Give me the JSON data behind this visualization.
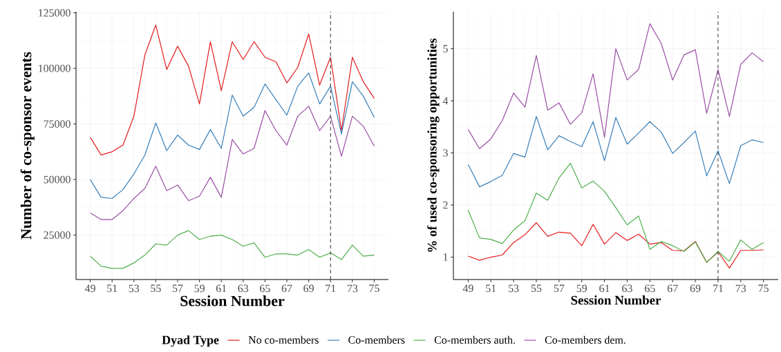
{
  "chart_data": [
    {
      "type": "line",
      "xlabel": "Session Number",
      "ylabel": "Number of co-sponsor events",
      "legend_title": "Dyad Type",
      "legend": "bottom",
      "grid": true,
      "x": [
        49,
        50,
        51,
        52,
        53,
        54,
        55,
        56,
        57,
        58,
        59,
        60,
        61,
        62,
        63,
        64,
        65,
        66,
        67,
        68,
        69,
        70,
        71,
        72,
        73,
        74,
        75
      ],
      "xlim": [
        47.7,
        76.3
      ],
      "xticks": [
        49,
        51,
        53,
        55,
        57,
        59,
        61,
        63,
        65,
        67,
        69,
        71,
        73,
        75
      ],
      "ylim": [
        5000,
        125500
      ],
      "yticks": [
        25000,
        50000,
        75000,
        100000,
        125000
      ],
      "ref_lines": [
        {
          "axis": "x",
          "value": 71,
          "color": "#333333",
          "line_style": "dashed"
        }
      ],
      "series": [
        {
          "name": "No co-members",
          "color": "#e41a1c",
          "values": [
            69000,
            61000,
            62500,
            65500,
            78500,
            106000,
            119500,
            99500,
            110000,
            101000,
            84000,
            112000,
            90000,
            112000,
            104000,
            112000,
            105000,
            103000,
            93500,
            100500,
            115500,
            92500,
            105000,
            72000,
            105000,
            94000,
            86500
          ]
        },
        {
          "name": "Co-members",
          "color": "#377eb8",
          "values": [
            50000,
            42000,
            41500,
            45500,
            52500,
            61000,
            75500,
            63000,
            70000,
            65500,
            63500,
            72500,
            64000,
            88000,
            78500,
            82500,
            93000,
            86000,
            79000,
            92000,
            98000,
            84000,
            92000,
            70500,
            94000,
            87500,
            78000
          ]
        },
        {
          "name": "Co-members auth.",
          "color": "#4daf4a",
          "values": [
            15500,
            11000,
            10000,
            10000,
            12500,
            16000,
            21000,
            20500,
            25000,
            27000,
            23000,
            24500,
            25000,
            23000,
            20000,
            21500,
            15000,
            16500,
            16500,
            16000,
            18500,
            15000,
            17000,
            14000,
            20500,
            15500,
            16000
          ]
        },
        {
          "name": "Co-members dem.",
          "color": "#984ea3",
          "values": [
            35000,
            32000,
            32000,
            36000,
            41500,
            46000,
            56000,
            45000,
            47500,
            40500,
            42500,
            51000,
            42000,
            68000,
            61500,
            64000,
            81000,
            72000,
            65500,
            78500,
            83000,
            72000,
            78500,
            60500,
            78500,
            74000,
            65000
          ]
        }
      ]
    },
    {
      "type": "line",
      "xlabel": "Session Number",
      "ylabel": "% of used co-sponsoring opportunities",
      "grid": true,
      "x": [
        49,
        50,
        51,
        52,
        53,
        54,
        55,
        56,
        57,
        58,
        59,
        60,
        61,
        62,
        63,
        64,
        65,
        66,
        67,
        68,
        69,
        70,
        71,
        72,
        73,
        74,
        75
      ],
      "xlim": [
        47.7,
        76.3
      ],
      "xticks": [
        49,
        51,
        53,
        55,
        57,
        59,
        61,
        63,
        65,
        67,
        69,
        71,
        73,
        75
      ],
      "ylim": [
        0.57,
        5.71
      ],
      "yticks": [
        1,
        2,
        3,
        4,
        5
      ],
      "ref_lines": [
        {
          "axis": "x",
          "value": 71,
          "color": "#333333",
          "line_style": "dashed"
        }
      ],
      "series": [
        {
          "color": "#e41a1c",
          "values": [
            1.02,
            0.94,
            1.0,
            1.04,
            1.28,
            1.43,
            1.66,
            1.4,
            1.48,
            1.46,
            1.22,
            1.63,
            1.25,
            1.47,
            1.32,
            1.44,
            1.25,
            1.28,
            1.13,
            1.12,
            1.3,
            0.9,
            1.1,
            0.79,
            1.13,
            1.13,
            1.14
          ]
        },
        {
          "color": "#377eb8",
          "values": [
            2.78,
            2.35,
            2.45,
            2.57,
            2.99,
            2.92,
            3.7,
            3.06,
            3.33,
            3.22,
            3.12,
            3.6,
            2.85,
            3.68,
            3.17,
            3.38,
            3.6,
            3.4,
            2.99,
            3.2,
            3.42,
            2.56,
            3.04,
            2.41,
            3.14,
            3.25,
            3.2
          ]
        },
        {
          "color": "#4daf4a",
          "values": [
            1.9,
            1.37,
            1.34,
            1.26,
            1.52,
            1.7,
            2.23,
            2.09,
            2.52,
            2.8,
            2.33,
            2.46,
            2.26,
            1.95,
            1.62,
            1.79,
            1.15,
            1.3,
            1.22,
            1.11,
            1.29,
            0.9,
            1.11,
            0.92,
            1.33,
            1.15,
            1.28
          ]
        },
        {
          "color": "#984ea3",
          "values": [
            3.45,
            3.08,
            3.27,
            3.62,
            4.15,
            3.88,
            4.87,
            3.82,
            3.96,
            3.55,
            3.77,
            4.52,
            3.3,
            5.0,
            4.4,
            4.6,
            5.48,
            5.1,
            4.4,
            4.88,
            4.98,
            3.76,
            4.6,
            3.7,
            4.7,
            4.92,
            4.75
          ]
        }
      ]
    }
  ]
}
